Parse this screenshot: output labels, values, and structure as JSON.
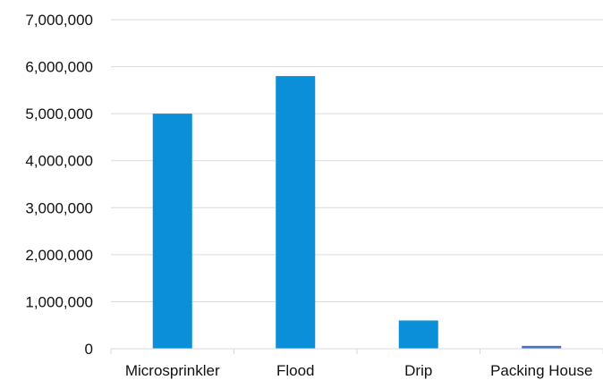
{
  "chart_data": {
    "type": "bar",
    "title": "",
    "xlabel": "",
    "ylabel": "",
    "categories": [
      "Microsprinkler",
      "Flood",
      "Drip",
      "Packing House"
    ],
    "values": [
      5000000,
      5800000,
      600000,
      60000
    ],
    "bar_colors": [
      "#0a8fd8",
      "#0a8fd8",
      "#0a8fd8",
      "#4472c4"
    ],
    "ylim": [
      0,
      7000000
    ],
    "yticks": [
      0,
      1000000,
      2000000,
      3000000,
      4000000,
      5000000,
      6000000,
      7000000
    ],
    "ytick_labels": [
      "0",
      "1,000,000",
      "2,000,000",
      "3,000,000",
      "4,000,000",
      "5,000,000",
      "6,000,000",
      "7,000,000"
    ],
    "grid": true,
    "legend": "none"
  }
}
